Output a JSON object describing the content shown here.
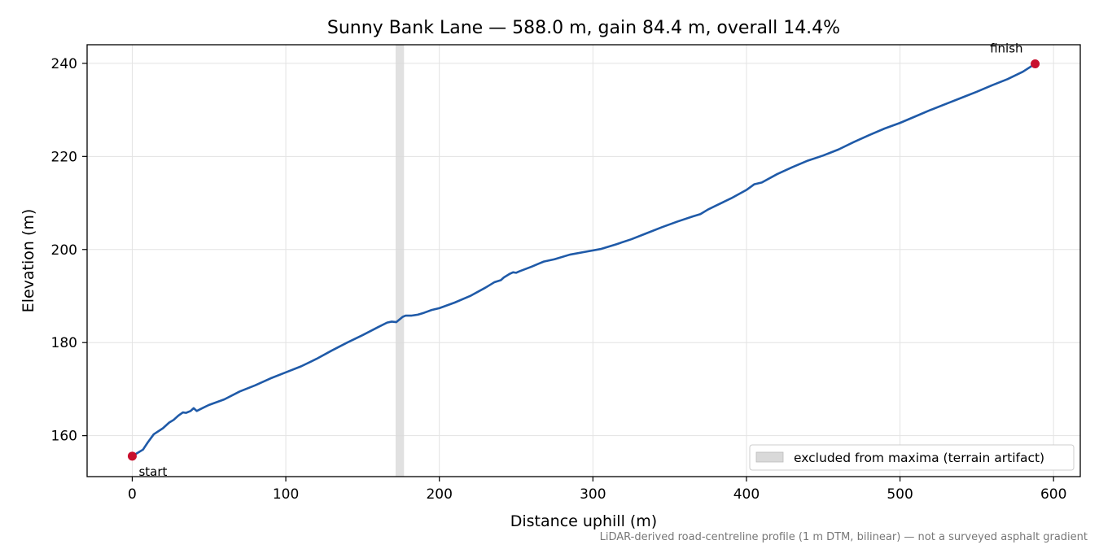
{
  "chart_data": {
    "type": "line",
    "title": "Sunny Bank Lane — 588.0 m, gain 84.4 m, overall 14.4%",
    "xlabel": "Distance uphill (m)",
    "ylabel": "Elevation (m)",
    "xlim": [
      -29.4,
      617.4
    ],
    "ylim": [
      151.2,
      244.0
    ],
    "xticks": [
      0,
      100,
      200,
      300,
      400,
      500,
      600
    ],
    "xtick_labels": [
      "0",
      "100",
      "200",
      "300",
      "400",
      "500",
      "600"
    ],
    "yticks": [
      160,
      180,
      200,
      220,
      240
    ],
    "ytick_labels": [
      "160",
      "180",
      "200",
      "220",
      "240"
    ],
    "grid": true,
    "legend_position": "lower-right",
    "series": [
      {
        "color": "#1f5aa8",
        "x": [
          0,
          3,
          7,
          10,
          14,
          20,
          24,
          27,
          30,
          33,
          35,
          38,
          40,
          42,
          45,
          50,
          60,
          70,
          80,
          90,
          100,
          110,
          120,
          130,
          140,
          150,
          160,
          166,
          169,
          172,
          176,
          178,
          182,
          186,
          190,
          195,
          200,
          210,
          220,
          230,
          236,
          240,
          242,
          246,
          248,
          250,
          252,
          260,
          265,
          268,
          275,
          285,
          295,
          305,
          315,
          325,
          335,
          345,
          355,
          365,
          370,
          375,
          380,
          390,
          400,
          405,
          410,
          420,
          430,
          440,
          450,
          460,
          470,
          480,
          490,
          500,
          510,
          520,
          530,
          540,
          550,
          560,
          570,
          580,
          588
        ],
        "y": [
          155.6,
          156.2,
          157.0,
          158.5,
          160.3,
          161.6,
          162.8,
          163.4,
          164.3,
          165.0,
          164.9,
          165.3,
          165.9,
          165.3,
          165.8,
          166.6,
          167.8,
          169.5,
          170.8,
          172.3,
          173.6,
          174.9,
          176.5,
          178.3,
          180.0,
          181.6,
          183.3,
          184.3,
          184.5,
          184.4,
          185.5,
          185.8,
          185.8,
          186.0,
          186.4,
          187.0,
          187.4,
          188.6,
          190.0,
          191.8,
          193.0,
          193.4,
          194.0,
          194.8,
          195.1,
          195.0,
          195.3,
          196.3,
          197.0,
          197.4,
          197.9,
          198.9,
          199.5,
          200.1,
          201.1,
          202.2,
          203.5,
          204.8,
          206.0,
          207.1,
          207.6,
          208.6,
          209.4,
          211.0,
          212.8,
          214.0,
          214.4,
          216.2,
          217.7,
          219.1,
          220.2,
          221.5,
          223.1,
          224.6,
          226.0,
          227.2,
          228.6,
          230.0,
          231.3,
          232.6,
          233.9,
          235.3,
          236.6,
          238.2,
          239.9
        ]
      }
    ],
    "markers": [
      {
        "x": 0,
        "y": 155.6,
        "label": "start",
        "color": "#c8102e"
      },
      {
        "x": 588,
        "y": 239.9,
        "label": "finish",
        "color": "#c8102e"
      }
    ],
    "excluded_band": {
      "x0": 171.5,
      "x1": 177.0,
      "label": "excluded from maxima (terrain artifact)",
      "color": "#d9d9d9"
    },
    "footnote": "LiDAR-derived road-centreline profile (1 m DTM, bilinear) — not a surveyed asphalt gradient"
  }
}
